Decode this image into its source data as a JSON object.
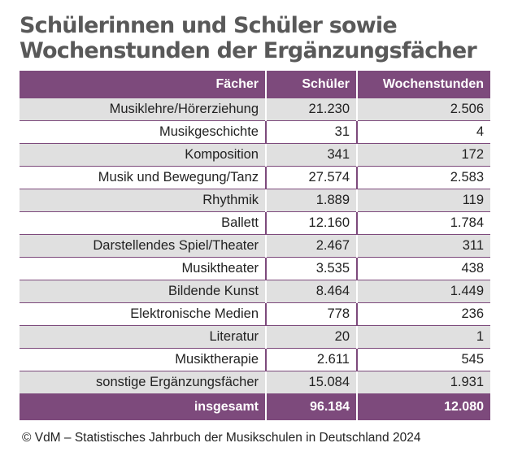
{
  "title_line1": "Schülerinnen und Schüler sowie",
  "title_line2": "Wochenstunden der Ergänzungsfächer",
  "headers": [
    "Fächer",
    "Schüler",
    "Wochenstunden"
  ],
  "chart_data": {
    "type": "table",
    "columns": [
      "Fächer",
      "Schüler",
      "Wochenstunden"
    ],
    "rows": [
      [
        "Musiklehre/Hörerziehung",
        "21.230",
        "2.506"
      ],
      [
        "Musikgeschichte",
        "31",
        "4"
      ],
      [
        "Komposition",
        "341",
        "172"
      ],
      [
        "Musik und Bewegung/Tanz",
        "27.574",
        "2.583"
      ],
      [
        "Rhythmik",
        "1.889",
        "119"
      ],
      [
        "Ballett",
        "12.160",
        "1.784"
      ],
      [
        "Darstellendes Spiel/Theater",
        "2.467",
        "311"
      ],
      [
        "Musiktheater",
        "3.535",
        "438"
      ],
      [
        "Bildende Kunst",
        "8.464",
        "1.449"
      ],
      [
        "Elektronische Medien",
        "778",
        "236"
      ],
      [
        "Literatur",
        "20",
        "1"
      ],
      [
        "Musiktherapie",
        "2.611",
        "545"
      ],
      [
        "sonstige Ergänzungsfächer",
        "15.084",
        "1.931"
      ]
    ],
    "total": [
      "insgesamt",
      "96.184",
      "12.080"
    ]
  },
  "source": "© VdM – Statistisches Jahrbuch der Musikschulen in Deutschland 2024",
  "colors": {
    "header": "#7d4a7c",
    "alt_row": "#e0e0e0",
    "title": "#595959"
  }
}
